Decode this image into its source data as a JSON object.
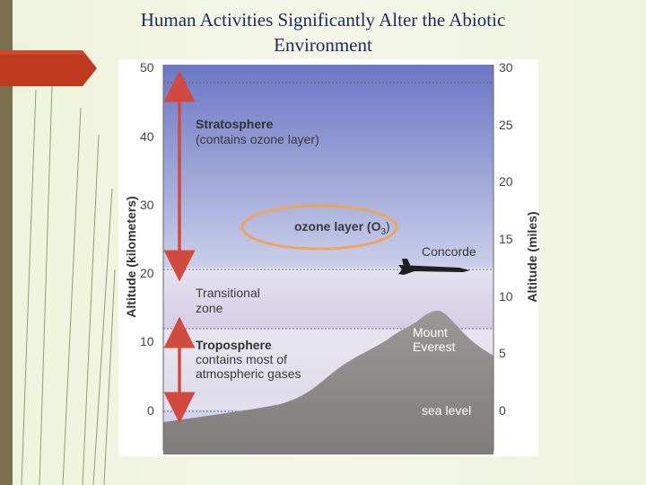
{
  "slide": {
    "title_line1": "Human Activities Significantly Alter the Abiotic",
    "title_line2": "Environment"
  },
  "colors": {
    "accent_tab": "#c0391f",
    "arrow": "#d24a3e",
    "ozone_ring": "#f0a45a",
    "mountain": "#8c8a88",
    "sky_top": "#6d79c6",
    "sky_bottom": "#e6e4ee"
  },
  "diagram": {
    "left_axis": {
      "title": "Altitude (kilometers)",
      "ticks": [
        "50",
        "40",
        "30",
        "20",
        "10",
        "0"
      ]
    },
    "right_axis": {
      "title": "Altitude (miles)",
      "ticks": [
        "30",
        "25",
        "20",
        "15",
        "10",
        "5",
        "0"
      ]
    },
    "labels": {
      "stratosphere_title": "Stratosphere",
      "stratosphere_note": "(contains ozone layer)",
      "ozone_text": "ozone layer (O",
      "ozone_sub": "3",
      "ozone_close": ")",
      "concorde": "Concorde",
      "transitional_line1": "Transitional",
      "transitional_line2": "zone",
      "troposphere_title": "Troposphere",
      "troposphere_line1": "contains most of",
      "troposphere_line2": "atmospheric gases",
      "everest_line1": "Mount",
      "everest_line2": "Everest",
      "sea_level": "sea level"
    }
  }
}
